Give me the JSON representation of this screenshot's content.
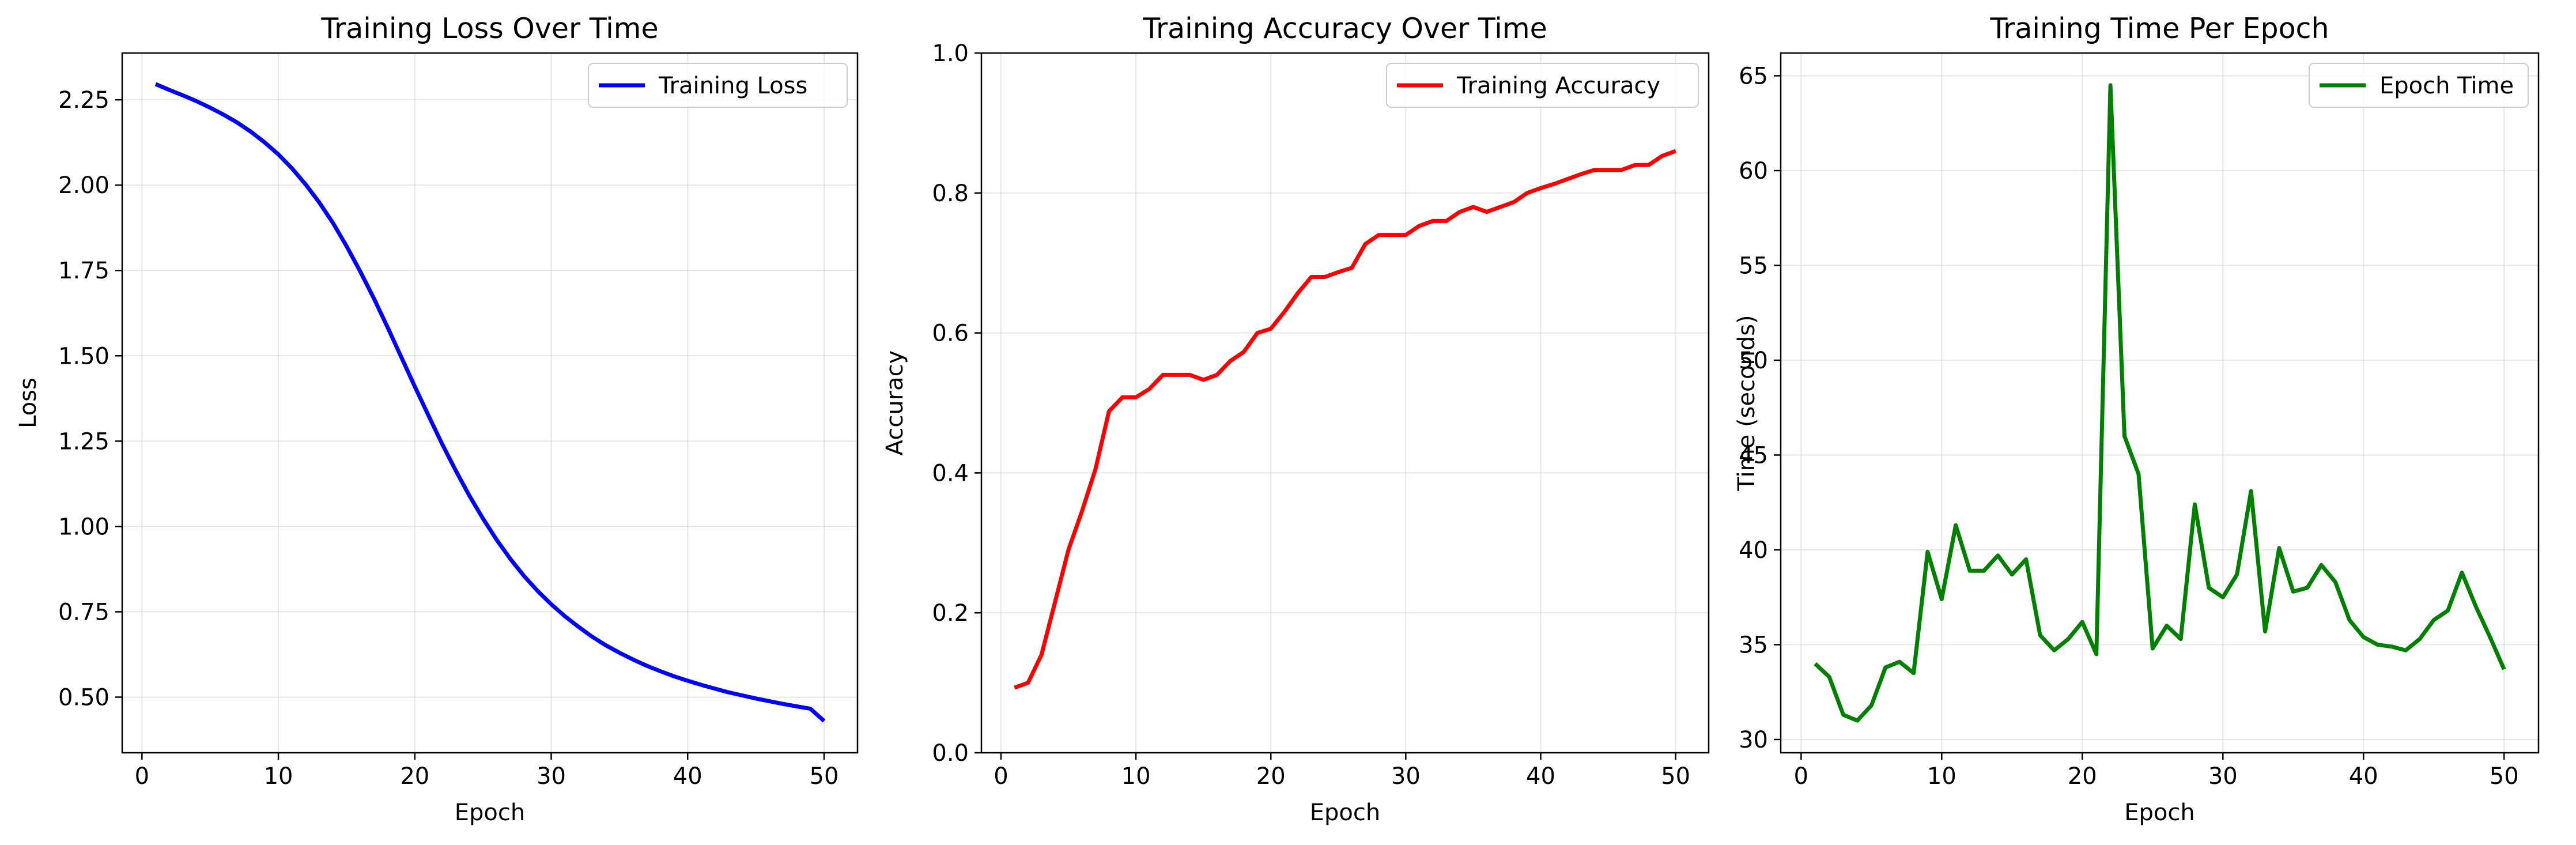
{
  "chart_data": [
    {
      "type": "line",
      "title": "Training Loss Over Time",
      "xlabel": "Epoch",
      "ylabel": "Loss",
      "xlim": [
        -1.45,
        52.45
      ],
      "ylim": [
        0.337,
        2.387
      ],
      "xticks": [
        0,
        10,
        20,
        30,
        40,
        50
      ],
      "yticks": [
        0.5,
        0.75,
        1.0,
        1.25,
        1.5,
        1.75,
        2.0,
        2.25
      ],
      "ytick_labels": [
        "0.50",
        "0.75",
        "1.00",
        "1.25",
        "1.50",
        "1.75",
        "2.00",
        "2.25"
      ],
      "grid": true,
      "legend_location": "top-right",
      "series": [
        {
          "name": "Training Loss",
          "color": "#0000ff",
          "x": [
            1,
            2,
            3,
            4,
            5,
            6,
            7,
            8,
            9,
            10,
            11,
            12,
            13,
            14,
            15,
            16,
            17,
            18,
            19,
            20,
            21,
            22,
            23,
            24,
            25,
            26,
            27,
            28,
            29,
            30,
            31,
            32,
            33,
            34,
            35,
            36,
            37,
            38,
            39,
            40,
            41,
            42,
            43,
            44,
            45,
            46,
            47,
            48,
            49,
            50
          ],
          "values": [
            2.296,
            2.279,
            2.263,
            2.246,
            2.227,
            2.206,
            2.183,
            2.156,
            2.125,
            2.09,
            2.049,
            2.002,
            1.949,
            1.889,
            1.821,
            1.747,
            1.668,
            1.584,
            1.497,
            1.41,
            1.325,
            1.242,
            1.164,
            1.09,
            1.023,
            0.961,
            0.905,
            0.855,
            0.811,
            0.772,
            0.737,
            0.706,
            0.677,
            0.652,
            0.63,
            0.61,
            0.592,
            0.576,
            0.561,
            0.548,
            0.536,
            0.525,
            0.514,
            0.505,
            0.496,
            0.488,
            0.48,
            0.473,
            0.466,
            0.43
          ]
        }
      ]
    },
    {
      "type": "line",
      "title": "Training Accuracy Over Time",
      "xlabel": "Epoch",
      "ylabel": "Accuracy",
      "xlim": [
        -1.45,
        52.45
      ],
      "ylim": [
        0.0,
        1.0
      ],
      "xticks": [
        0,
        10,
        20,
        30,
        40,
        50
      ],
      "yticks": [
        0.0,
        0.2,
        0.4,
        0.6,
        0.8,
        1.0
      ],
      "ytick_labels": [
        "0.0",
        "0.2",
        "0.4",
        "0.6",
        "0.8",
        "1.0"
      ],
      "grid": true,
      "legend_location": "top-right",
      "series": [
        {
          "name": "Training Accuracy",
          "color": "#ff0000",
          "x": [
            1,
            2,
            3,
            4,
            5,
            6,
            7,
            8,
            9,
            10,
            11,
            12,
            13,
            14,
            15,
            16,
            17,
            18,
            19,
            20,
            21,
            22,
            23,
            24,
            25,
            26,
            27,
            28,
            29,
            30,
            31,
            32,
            33,
            34,
            35,
            36,
            37,
            38,
            39,
            40,
            41,
            42,
            43,
            44,
            45,
            46,
            47,
            48,
            49,
            50
          ],
          "values": [
            0.093,
            0.1,
            0.14,
            0.215,
            0.29,
            0.345,
            0.405,
            0.488,
            0.508,
            0.508,
            0.52,
            0.54,
            0.54,
            0.54,
            0.533,
            0.54,
            0.56,
            0.573,
            0.6,
            0.606,
            0.63,
            0.657,
            0.68,
            0.68,
            0.687,
            0.693,
            0.727,
            0.74,
            0.74,
            0.74,
            0.753,
            0.76,
            0.76,
            0.773,
            0.78,
            0.773,
            0.78,
            0.787,
            0.8,
            0.807,
            0.813,
            0.82,
            0.827,
            0.833,
            0.833,
            0.833,
            0.84,
            0.84,
            0.853,
            0.86
          ]
        }
      ]
    },
    {
      "type": "line",
      "title": "Training Time Per Epoch",
      "xlabel": "Epoch",
      "ylabel": "Time (seconds)",
      "xlim": [
        -1.45,
        52.45
      ],
      "ylim": [
        29.3,
        66.2
      ],
      "xticks": [
        0,
        10,
        20,
        30,
        40,
        50
      ],
      "yticks": [
        30,
        35,
        40,
        45,
        50,
        55,
        60,
        65
      ],
      "ytick_labels": [
        "30",
        "35",
        "40",
        "45",
        "50",
        "55",
        "60",
        "65"
      ],
      "grid": true,
      "legend_location": "top-right",
      "series": [
        {
          "name": "Epoch Time",
          "color": "#008000",
          "x": [
            1,
            2,
            3,
            4,
            5,
            6,
            7,
            8,
            9,
            10,
            11,
            12,
            13,
            14,
            15,
            16,
            17,
            18,
            19,
            20,
            21,
            22,
            23,
            24,
            25,
            26,
            27,
            28,
            29,
            30,
            31,
            32,
            33,
            34,
            35,
            36,
            37,
            38,
            39,
            40,
            41,
            42,
            43,
            44,
            45,
            46,
            47,
            48,
            49,
            50
          ],
          "values": [
            34.0,
            33.3,
            31.3,
            31.0,
            31.8,
            33.8,
            34.1,
            33.5,
            39.9,
            37.4,
            41.3,
            38.9,
            38.9,
            39.7,
            38.7,
            39.5,
            35.5,
            34.7,
            35.3,
            36.2,
            34.5,
            64.5,
            46.0,
            44.0,
            34.8,
            36.0,
            35.3,
            42.4,
            38.0,
            37.5,
            38.7,
            43.1,
            35.7,
            40.1,
            37.8,
            38.0,
            39.2,
            38.3,
            36.3,
            35.4,
            35.0,
            34.9,
            34.7,
            35.3,
            36.3,
            36.8,
            38.8,
            37.0,
            35.4,
            33.7
          ]
        }
      ]
    }
  ]
}
